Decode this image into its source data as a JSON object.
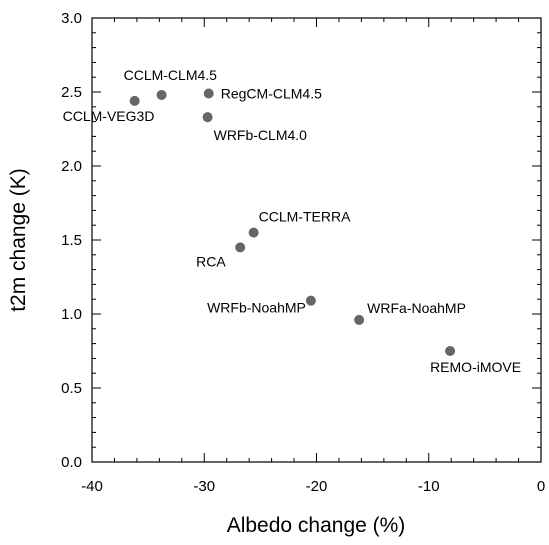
{
  "chart_data": {
    "type": "scatter",
    "title": "",
    "xlabel": "Albedo change (%)",
    "ylabel": "t2m change (K)",
    "xlim": [
      -40,
      0
    ],
    "ylim": [
      0,
      3.0
    ],
    "x_major_ticks": [
      -40,
      -30,
      -20,
      -10,
      0
    ],
    "y_major_ticks": [
      0.0,
      0.5,
      1.0,
      1.5,
      2.0,
      2.5,
      3.0
    ],
    "x_tick_labels": [
      "-40",
      "-30",
      "-20",
      "-10",
      "0"
    ],
    "y_tick_labels": [
      "0.0",
      "0.5",
      "1.0",
      "1.5",
      "2.0",
      "2.5",
      "3.0"
    ],
    "grid": false,
    "marker_color": "#666666",
    "points": [
      {
        "label": "CCLM-CLM4.5",
        "x": -33.8,
        "y": 2.48,
        "anchor": "start",
        "dx": -38,
        "dy": -15
      },
      {
        "label": "CCLM-VEG3D",
        "x": -36.2,
        "y": 2.44,
        "anchor": "start",
        "dx": -72,
        "dy": 20
      },
      {
        "label": "RegCM-CLM4.5",
        "x": -29.6,
        "y": 2.49,
        "anchor": "start",
        "dx": 12,
        "dy": 5
      },
      {
        "label": "WRFb-CLM4.0",
        "x": -29.7,
        "y": 2.33,
        "anchor": "start",
        "dx": 6,
        "dy": 23
      },
      {
        "label": "CCLM-TERRA",
        "x": -25.6,
        "y": 1.55,
        "anchor": "start",
        "dx": 5,
        "dy": -11
      },
      {
        "label": "RCA",
        "x": -26.8,
        "y": 1.45,
        "anchor": "start",
        "dx": -44,
        "dy": 19
      },
      {
        "label": "WRFb-NoahMP",
        "x": -20.5,
        "y": 1.09,
        "anchor": "end",
        "dx": -5,
        "dy": 12
      },
      {
        "label": "WRFa-NoahMP",
        "x": -16.2,
        "y": 0.96,
        "anchor": "start",
        "dx": 8,
        "dy": -7
      },
      {
        "label": "REMO-iMOVE",
        "x": -8.1,
        "y": 0.75,
        "anchor": "start",
        "dx": -20,
        "dy": 21
      }
    ]
  }
}
